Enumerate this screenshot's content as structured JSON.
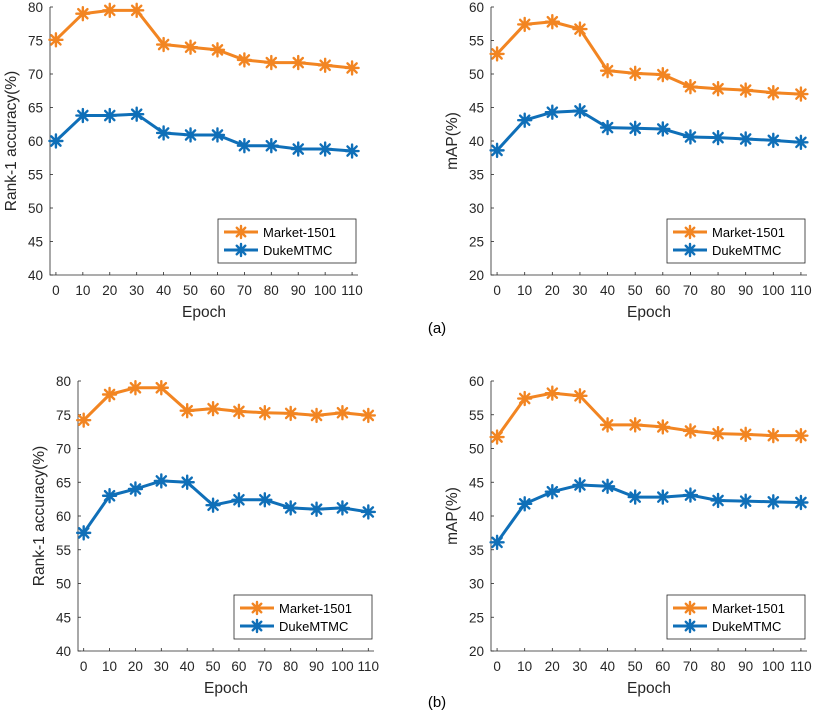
{
  "colors": {
    "market": "#F28522",
    "duke": "#0F6FB8"
  },
  "captions": [
    "(a)",
    "(b)"
  ],
  "chart_data": [
    {
      "type": "line",
      "title": "",
      "xlabel": "Epoch",
      "ylabel": "Rank-1 accuracy(%)",
      "x": [
        0,
        10,
        20,
        30,
        40,
        50,
        60,
        70,
        80,
        90,
        100,
        110
      ],
      "xticks": [
        "0",
        "10",
        "20",
        "30",
        "40",
        "50",
        "60",
        "70",
        "80",
        "90",
        "100",
        "110"
      ],
      "yticks": [
        "40",
        "45",
        "50",
        "55",
        "60",
        "65",
        "70",
        "75",
        "80"
      ],
      "ylim": [
        40,
        80
      ],
      "legend": "bottom-right",
      "series": [
        {
          "name": "Market-1501",
          "values": [
            75.1,
            79.0,
            79.5,
            79.5,
            74.4,
            74.0,
            73.6,
            72.1,
            71.7,
            71.7,
            71.3,
            70.9
          ]
        },
        {
          "name": "DukeMTMC",
          "values": [
            60.0,
            63.8,
            63.8,
            64.0,
            61.2,
            60.9,
            60.9,
            59.3,
            59.3,
            58.8,
            58.8,
            58.5
          ]
        }
      ]
    },
    {
      "type": "line",
      "title": "",
      "xlabel": "Epoch",
      "ylabel": "mAP(%)",
      "x": [
        0,
        10,
        20,
        30,
        40,
        50,
        60,
        70,
        80,
        90,
        100,
        110
      ],
      "xticks": [
        "0",
        "10",
        "20",
        "30",
        "40",
        "50",
        "60",
        "70",
        "80",
        "90",
        "100",
        "110"
      ],
      "yticks": [
        "20",
        "25",
        "30",
        "35",
        "40",
        "45",
        "50",
        "55",
        "60"
      ],
      "ylim": [
        20,
        60
      ],
      "legend": "bottom-right",
      "series": [
        {
          "name": "Market-1501",
          "values": [
            53.0,
            57.4,
            57.8,
            56.7,
            50.5,
            50.1,
            49.9,
            48.1,
            47.8,
            47.6,
            47.2,
            47.0
          ]
        },
        {
          "name": "DukeMTMC",
          "values": [
            38.6,
            43.1,
            44.3,
            44.5,
            42.0,
            41.9,
            41.8,
            40.6,
            40.5,
            40.3,
            40.1,
            39.8
          ]
        }
      ]
    },
    {
      "type": "line",
      "title": "",
      "xlabel": "Epoch",
      "ylabel": "Rank-1 accuracy(%)",
      "x": [
        0,
        10,
        20,
        30,
        40,
        50,
        60,
        70,
        80,
        90,
        100,
        110
      ],
      "xticks": [
        "0",
        "10",
        "20",
        "30",
        "40",
        "50",
        "60",
        "70",
        "80",
        "90",
        "100",
        "110"
      ],
      "yticks": [
        "40",
        "45",
        "50",
        "55",
        "60",
        "65",
        "70",
        "75",
        "80"
      ],
      "ylim": [
        40,
        80
      ],
      "legend": "bottom-right",
      "series": [
        {
          "name": "Market-1501",
          "values": [
            74.2,
            78.0,
            79.0,
            79.0,
            75.6,
            75.9,
            75.5,
            75.3,
            75.2,
            74.9,
            75.3,
            74.9
          ]
        },
        {
          "name": "DukeMTMC",
          "values": [
            57.5,
            63.0,
            64.0,
            65.2,
            65.0,
            61.6,
            62.4,
            62.4,
            61.2,
            61.0,
            61.2,
            60.6
          ]
        }
      ]
    },
    {
      "type": "line",
      "title": "",
      "xlabel": "Epoch",
      "ylabel": "mAP(%)",
      "x": [
        0,
        10,
        20,
        30,
        40,
        50,
        60,
        70,
        80,
        90,
        100,
        110
      ],
      "xticks": [
        "0",
        "10",
        "20",
        "30",
        "40",
        "50",
        "60",
        "70",
        "80",
        "90",
        "100",
        "110"
      ],
      "yticks": [
        "20",
        "25",
        "30",
        "35",
        "40",
        "45",
        "50",
        "55",
        "60"
      ],
      "ylim": [
        20,
        60
      ],
      "legend": "bottom-right",
      "series": [
        {
          "name": "Market-1501",
          "values": [
            51.7,
            57.4,
            58.2,
            57.8,
            53.5,
            53.5,
            53.2,
            52.6,
            52.2,
            52.1,
            51.9,
            51.9
          ]
        },
        {
          "name": "DukeMTMC",
          "values": [
            36.1,
            41.8,
            43.6,
            44.6,
            44.4,
            42.8,
            42.8,
            43.1,
            42.3,
            42.2,
            42.1,
            42.0
          ]
        }
      ]
    }
  ]
}
